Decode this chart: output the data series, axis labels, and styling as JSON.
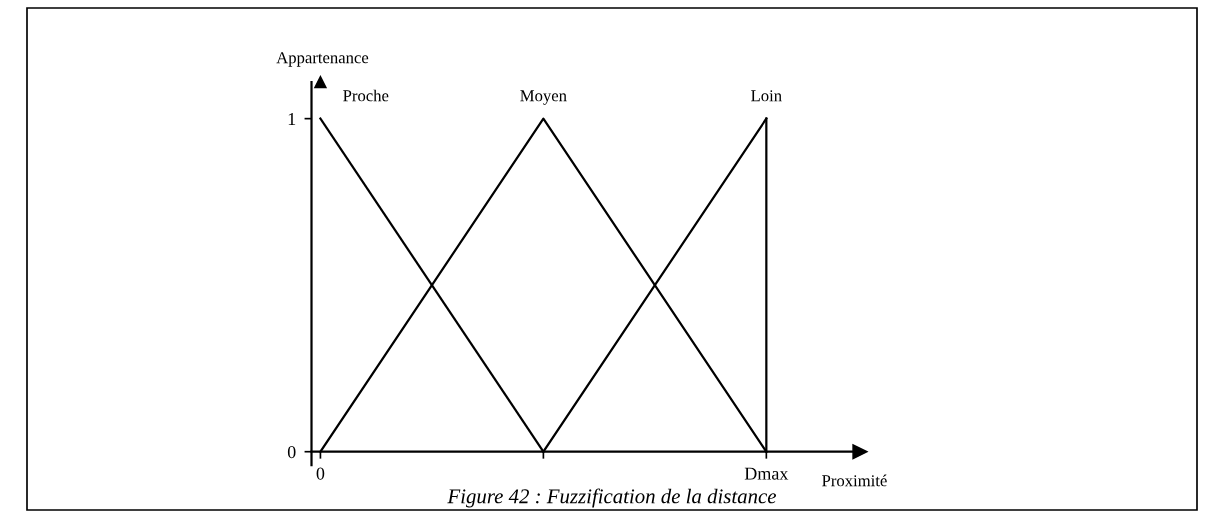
{
  "chart_data": {
    "type": "line",
    "xlabel": "Proximité",
    "ylabel": "Appartenance",
    "categories": [
      "0",
      null,
      "Dmax"
    ],
    "series": [
      {
        "name": "Proche",
        "color": "#000000",
        "values": [
          1,
          0,
          null
        ]
      },
      {
        "name": "Moyen",
        "color": "#000000",
        "values": [
          0,
          1,
          0
        ]
      },
      {
        "name": "Loin",
        "color": "#000000",
        "values": [
          null,
          0,
          1
        ]
      }
    ],
    "ref_lines": [
      {
        "axis": "x",
        "value": "Dmax",
        "color": "#000000",
        "line_style": "solid"
      }
    ],
    "ylim": [
      -0.04,
      1.11
    ],
    "yticks": [
      0,
      1
    ],
    "grid": false,
    "legend": false,
    "marker": "none",
    "line_style": "solid",
    "annotations": [
      "Figure 42 : Fuzzification de la distance"
    ]
  }
}
